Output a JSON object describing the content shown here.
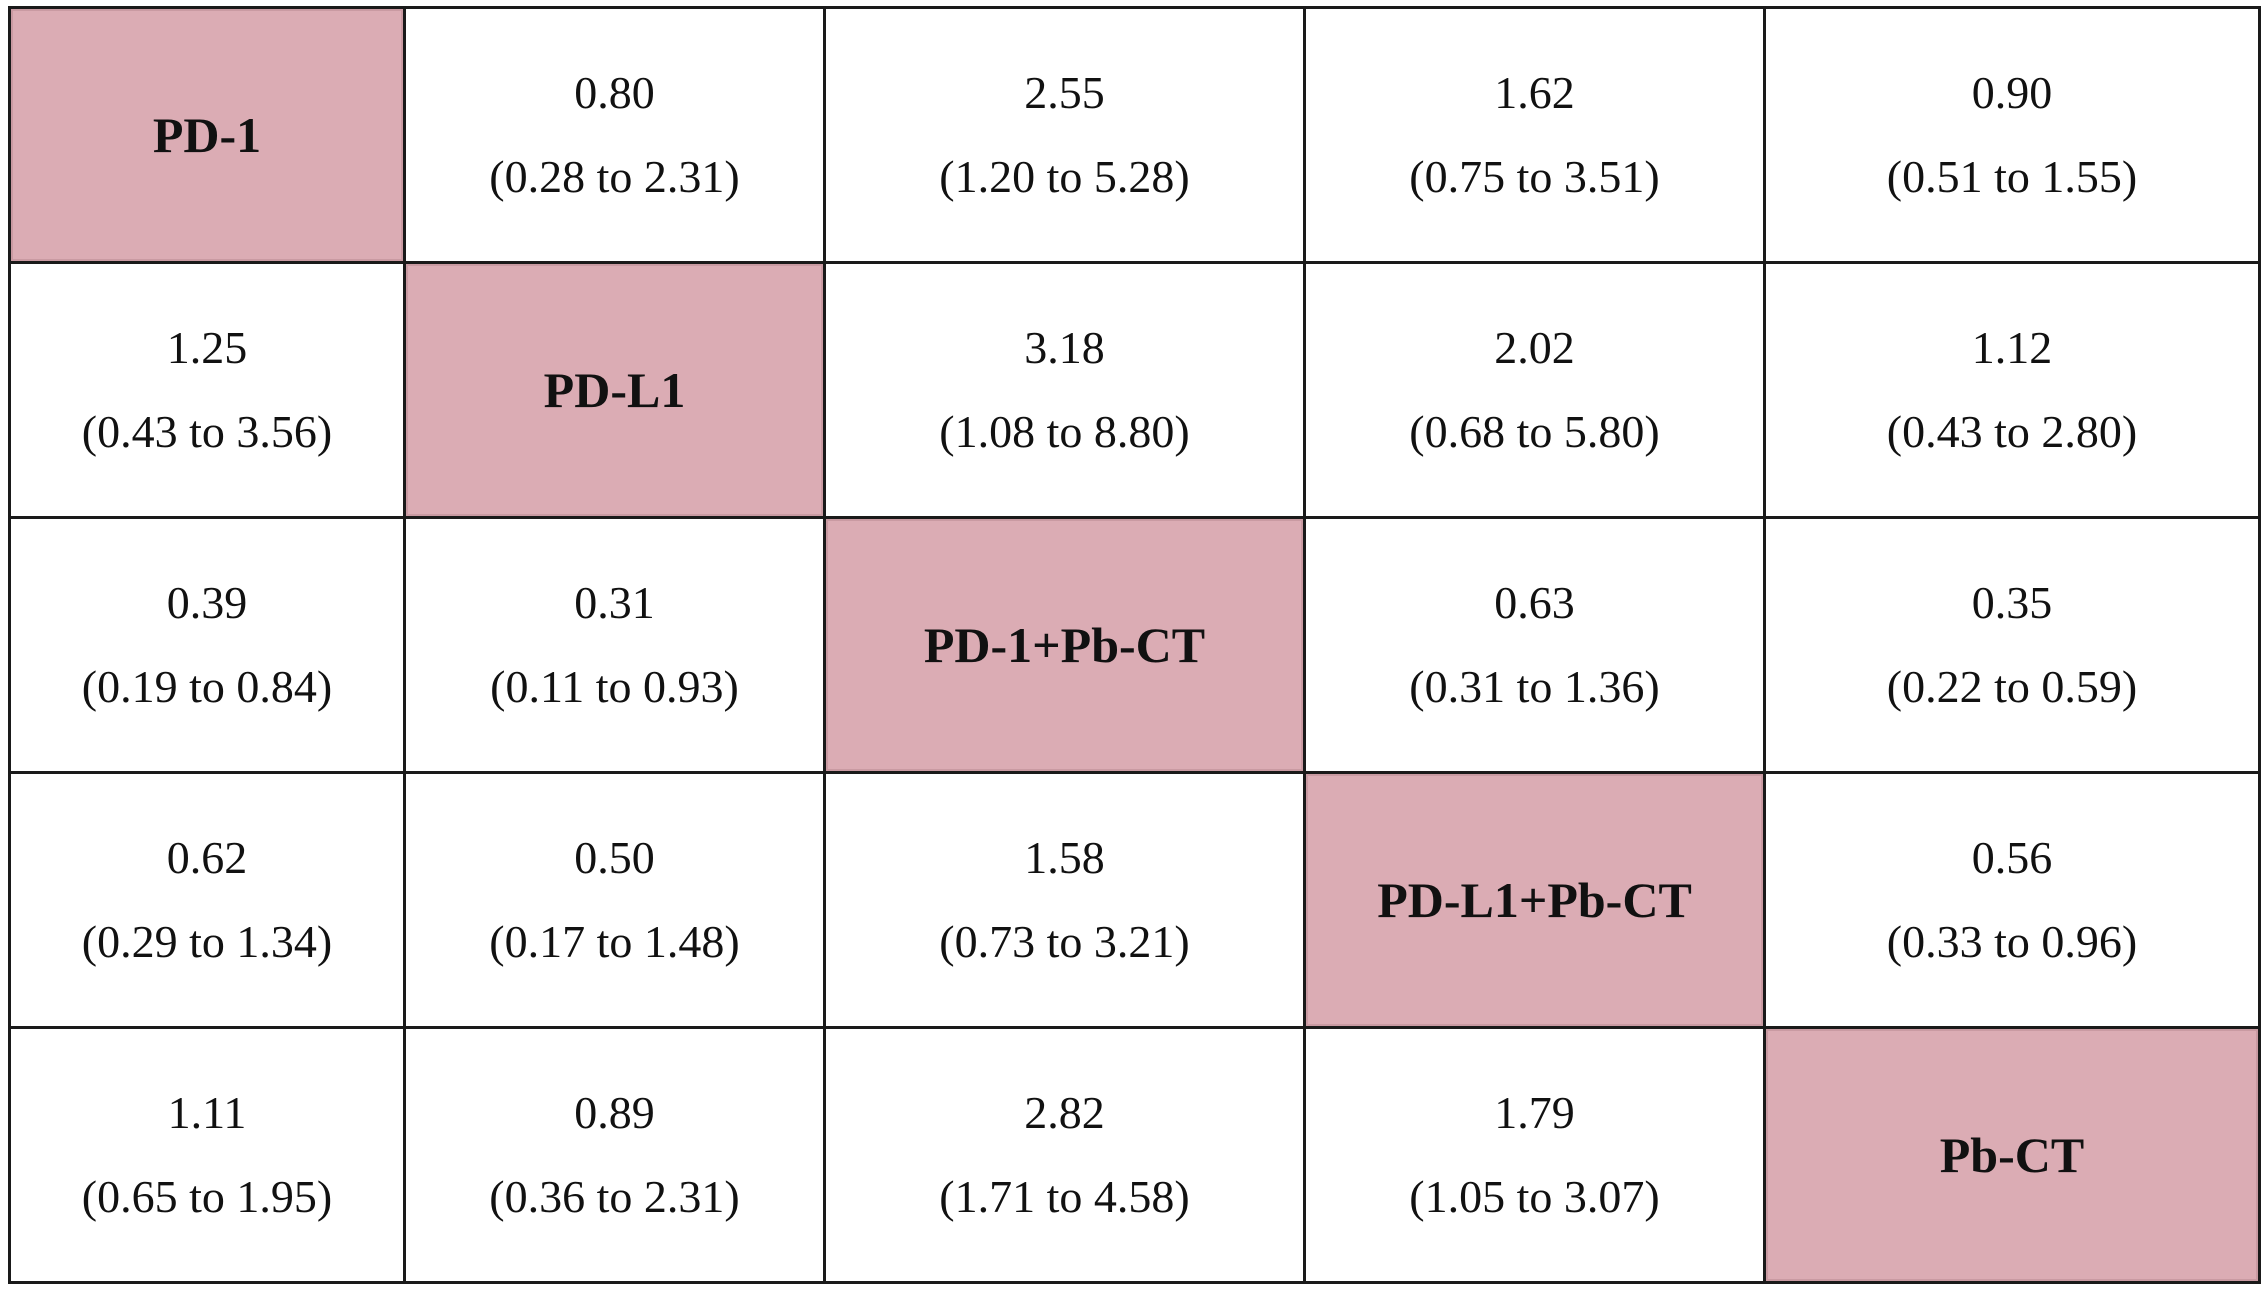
{
  "rows": [
    [
      {
        "treatment": "PD-1"
      },
      {
        "value": "0.80",
        "ci": "(0.28 to 2.31)"
      },
      {
        "value": "2.55",
        "ci": "(1.20 to 5.28)"
      },
      {
        "value": "1.62",
        "ci": "(0.75 to 3.51)"
      },
      {
        "value": "0.90",
        "ci": "(0.51 to 1.55)"
      }
    ],
    [
      {
        "value": "1.25",
        "ci": "(0.43 to 3.56)"
      },
      {
        "treatment": "PD-L1"
      },
      {
        "value": "3.18",
        "ci": "(1.08 to 8.80)"
      },
      {
        "value": "2.02",
        "ci": "(0.68 to 5.80)"
      },
      {
        "value": "1.12",
        "ci": "(0.43 to 2.80)"
      }
    ],
    [
      {
        "value": "0.39",
        "ci": "(0.19 to 0.84)"
      },
      {
        "value": "0.31",
        "ci": "(0.11 to 0.93)"
      },
      {
        "treatment": "PD-1+Pb-CT"
      },
      {
        "value": "0.63",
        "ci": "(0.31 to 1.36)"
      },
      {
        "value": "0.35",
        "ci": "(0.22 to 0.59)"
      }
    ],
    [
      {
        "value": "0.62",
        "ci": "(0.29 to 1.34)"
      },
      {
        "value": "0.50",
        "ci": "(0.17 to 1.48)"
      },
      {
        "value": "1.58",
        "ci": "(0.73 to 3.21)"
      },
      {
        "treatment": "PD-L1+Pb-CT"
      },
      {
        "value": "0.56",
        "ci": "(0.33 to 0.96)"
      }
    ],
    [
      {
        "value": "1.11",
        "ci": "(0.65 to 1.95)"
      },
      {
        "value": "0.89",
        "ci": "(0.36 to 2.31)"
      },
      {
        "value": "2.82",
        "ci": "(1.71 to 4.58)"
      },
      {
        "value": "1.79",
        "ci": "(1.05 to 3.07)"
      },
      {
        "treatment": "Pb-CT"
      }
    ]
  ],
  "colors": {
    "diagonal_fill": "#dbacb4",
    "border": "#1a1a1a"
  }
}
